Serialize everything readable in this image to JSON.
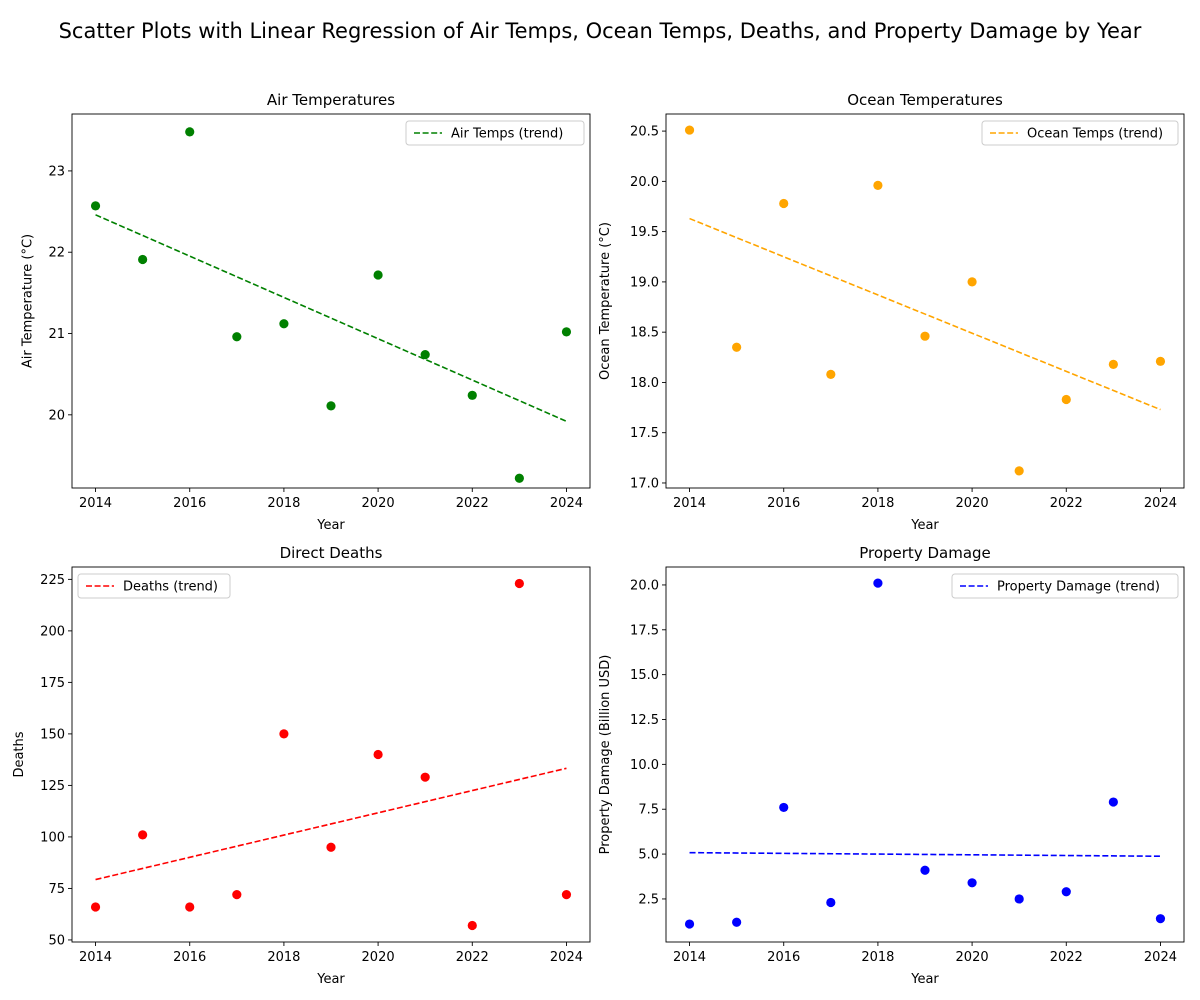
{
  "figure": {
    "title": "Scatter Plots with Linear Regression of Air Temps, Ocean Temps, Deaths, and Property Damage by Year"
  },
  "chart_data": [
    {
      "id": "air",
      "type": "scatter",
      "title": "Air Temperatures",
      "xlabel": "Year",
      "ylabel": "Air Temperature (°C)",
      "xlim": [
        2013.5,
        2024.5
      ],
      "ylim": [
        19.1,
        23.7
      ],
      "xticks": [
        2014,
        2016,
        2018,
        2020,
        2022,
        2024
      ],
      "yticks": [
        20,
        21,
        22,
        23
      ],
      "ytick_labels": [
        "20",
        "21",
        "22",
        "23"
      ],
      "color": "#008000",
      "legend_position": "top-right",
      "x": [
        2014,
        2015,
        2016,
        2017,
        2018,
        2019,
        2020,
        2021,
        2022,
        2023,
        2024
      ],
      "y": [
        22.57,
        21.91,
        23.48,
        20.96,
        21.12,
        20.11,
        21.72,
        20.74,
        20.24,
        19.22,
        21.02
      ],
      "trend": {
        "name": "Air Temps (trend)",
        "x": [
          2014,
          2024
        ],
        "y": [
          22.46,
          19.92
        ]
      }
    },
    {
      "id": "ocean",
      "type": "scatter",
      "title": "Ocean Temperatures",
      "xlabel": "Year",
      "ylabel": "Ocean Temperature (°C)",
      "xlim": [
        2013.5,
        2024.5
      ],
      "ylim": [
        16.95,
        20.67
      ],
      "xticks": [
        2014,
        2016,
        2018,
        2020,
        2022,
        2024
      ],
      "yticks": [
        17.0,
        17.5,
        18.0,
        18.5,
        19.0,
        19.5,
        20.0,
        20.5
      ],
      "ytick_labels": [
        "17.0",
        "17.5",
        "18.0",
        "18.5",
        "19.0",
        "19.5",
        "20.0",
        "20.5"
      ],
      "color": "#ffa500",
      "legend_position": "top-right",
      "x": [
        2014,
        2015,
        2016,
        2017,
        2018,
        2019,
        2020,
        2021,
        2022,
        2023,
        2024
      ],
      "y": [
        20.51,
        18.35,
        19.78,
        18.08,
        19.96,
        18.46,
        19.0,
        17.12,
        17.83,
        18.18,
        18.21
      ],
      "trend": {
        "name": "Ocean Temps (trend)",
        "x": [
          2014,
          2024
        ],
        "y": [
          19.63,
          17.73
        ]
      }
    },
    {
      "id": "deaths",
      "type": "scatter",
      "title": "Direct Deaths",
      "xlabel": "Year",
      "ylabel": "Deaths",
      "xlim": [
        2013.5,
        2024.5
      ],
      "ylim": [
        49,
        231
      ],
      "xticks": [
        2014,
        2016,
        2018,
        2020,
        2022,
        2024
      ],
      "yticks": [
        50,
        75,
        100,
        125,
        150,
        175,
        200,
        225
      ],
      "ytick_labels": [
        "50",
        "75",
        "100",
        "125",
        "150",
        "175",
        "200",
        "225"
      ],
      "color": "#ff0000",
      "legend_position": "top-left",
      "x": [
        2014,
        2015,
        2016,
        2017,
        2018,
        2019,
        2020,
        2021,
        2022,
        2023,
        2024
      ],
      "y": [
        66,
        101,
        66,
        72,
        150,
        95,
        140,
        129,
        57,
        223,
        72
      ],
      "trend": {
        "name": "Deaths (trend)",
        "x": [
          2014,
          2024
        ],
        "y": [
          79.3,
          133.3
        ]
      }
    },
    {
      "id": "damage",
      "type": "scatter",
      "title": "Property Damage",
      "xlabel": "Year",
      "ylabel": "Property Damage (Billion USD)",
      "xlim": [
        2013.5,
        2024.5
      ],
      "ylim": [
        0.1,
        21.0
      ],
      "xticks": [
        2014,
        2016,
        2018,
        2020,
        2022,
        2024
      ],
      "yticks": [
        2.5,
        5.0,
        7.5,
        10.0,
        12.5,
        15.0,
        17.5,
        20.0
      ],
      "ytick_labels": [
        "2.5",
        "5.0",
        "7.5",
        "10.0",
        "12.5",
        "15.0",
        "17.5",
        "20.0"
      ],
      "color": "#0000ff",
      "legend_position": "top-right",
      "x": [
        2014,
        2015,
        2016,
        2017,
        2018,
        2019,
        2020,
        2021,
        2022,
        2023,
        2024
      ],
      "y": [
        1.1,
        1.2,
        7.6,
        2.3,
        20.1,
        4.1,
        3.4,
        2.5,
        2.9,
        7.9,
        1.4
      ],
      "trend": {
        "name": "Property Damage (trend)",
        "x": [
          2014,
          2024
        ],
        "y": [
          5.08,
          4.88
        ]
      }
    }
  ]
}
